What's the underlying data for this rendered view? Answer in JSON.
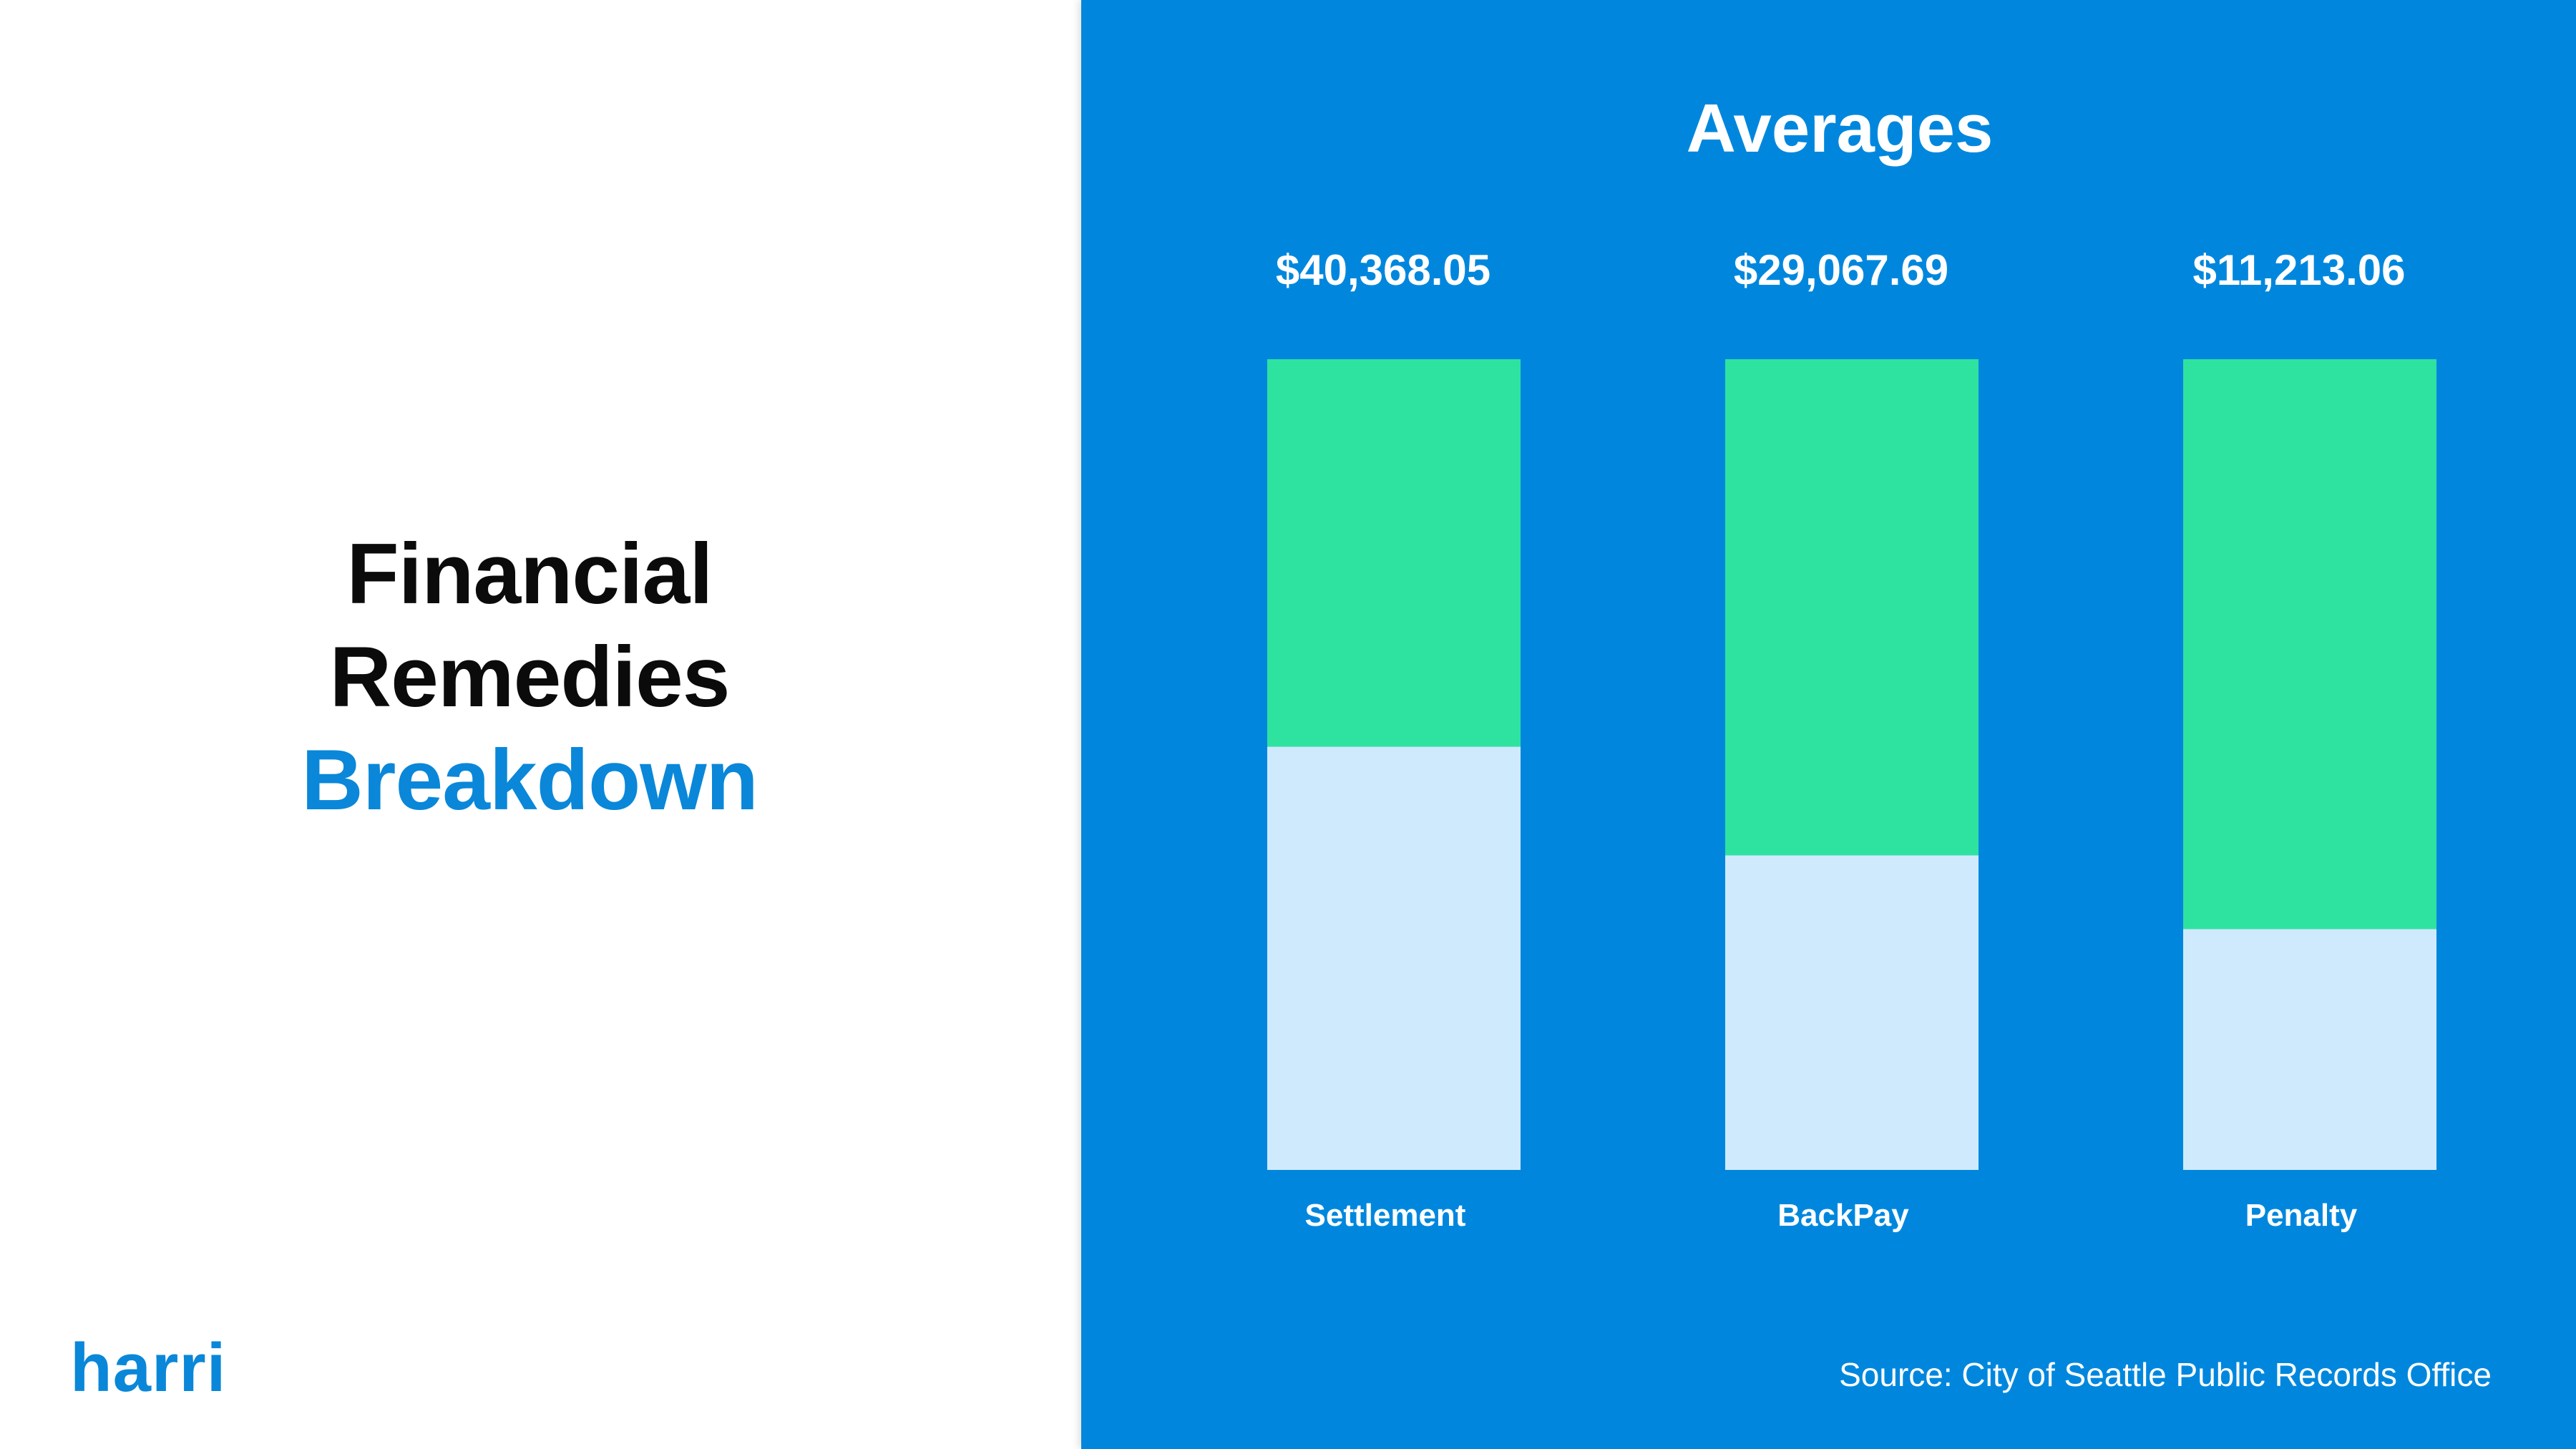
{
  "colors": {
    "accent": "#0a87d9",
    "panel": "#0087dd",
    "bar_top": "#2ee3a0",
    "bar_bottom": "#cfeafd",
    "text_light": "#ffffff"
  },
  "heading": {
    "line1": "Financial",
    "line2": "Remedies",
    "line3": "Breakdown"
  },
  "logo": {
    "text": "harri"
  },
  "source": "Source: City of Seattle Public Records Office",
  "chart_data": {
    "type": "bar",
    "stacked": true,
    "title": "Averages",
    "categories": [
      "Settlement",
      "BackPay",
      "Penalty"
    ],
    "value_labels": [
      "$40,368.05",
      "$29,067.69",
      "$11,213.06"
    ],
    "values": [
      40368.05,
      29067.69,
      11213.06
    ],
    "lower_fraction": [
      0.522,
      0.388,
      0.297
    ],
    "grid": false,
    "legend": "none"
  }
}
